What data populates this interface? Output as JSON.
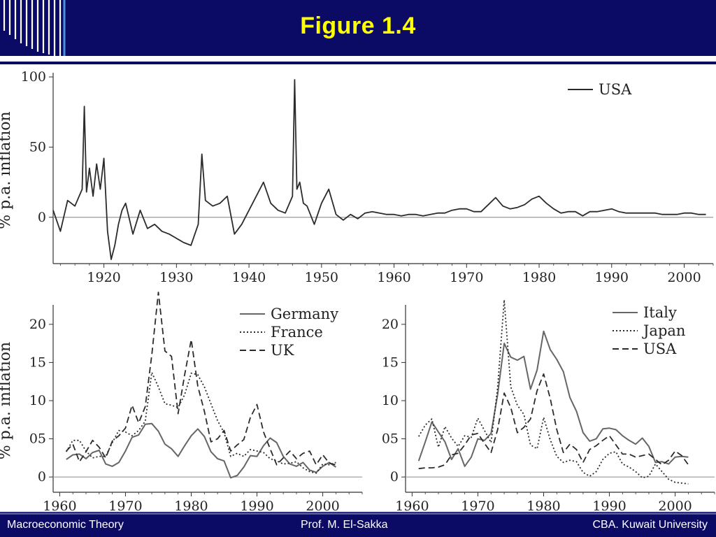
{
  "title": "Figure 1.4",
  "footer": {
    "left": "Macroeconomic Theory",
    "center": "Prof. M. El-Sakka",
    "right": "CBA. Kuwait University"
  },
  "colors": {
    "header": "#0b0b66",
    "title": "#ffff00",
    "line": "#2b2b2b",
    "gray": "#555555"
  },
  "chart_data": [
    {
      "type": "line",
      "ylabel": "% p.a. inflation",
      "xlim": [
        1913,
        2004
      ],
      "ylim": [
        -33,
        100
      ],
      "xticks": [
        1920,
        1930,
        1940,
        1950,
        1960,
        1970,
        1980,
        1990,
        2000
      ],
      "yticks": [
        0,
        50,
        100
      ],
      "legend_position": "top-right",
      "series": [
        {
          "name": "USA",
          "style": "solid",
          "x": [
            1913,
            1914,
            1915,
            1916,
            1917,
            1917.3,
            1917.6,
            1918,
            1918.5,
            1919,
            1919.5,
            1920,
            1920.5,
            1921,
            1921.5,
            1922,
            1922.5,
            1923,
            1924,
            1925,
            1926,
            1927,
            1928,
            1929,
            1930,
            1931,
            1932,
            1933,
            1933.5,
            1934,
            1935,
            1936,
            1937,
            1938,
            1939,
            1940,
            1941,
            1942,
            1943,
            1944,
            1945,
            1946,
            1946.3,
            1946.6,
            1947,
            1947.5,
            1948,
            1949,
            1950,
            1951,
            1952,
            1953,
            1954,
            1955,
            1956,
            1957,
            1958,
            1959,
            1960,
            1961,
            1962,
            1963,
            1964,
            1965,
            1966,
            1967,
            1968,
            1969,
            1970,
            1971,
            1972,
            1973,
            1974,
            1975,
            1976,
            1977,
            1978,
            1979,
            1980,
            1981,
            1982,
            1983,
            1984,
            1985,
            1986,
            1987,
            1988,
            1989,
            1990,
            1991,
            1992,
            1993,
            1994,
            1995,
            1996,
            1997,
            1998,
            1999,
            2000,
            2001,
            2002,
            2003
          ],
          "y": [
            5,
            -10,
            12,
            8,
            20,
            79,
            18,
            35,
            15,
            38,
            20,
            42,
            -10,
            -30,
            -20,
            -5,
            5,
            10,
            -12,
            5,
            -8,
            -5,
            -10,
            -12,
            -15,
            -18,
            -20,
            -5,
            45,
            12,
            8,
            10,
            15,
            -12,
            -5,
            5,
            15,
            25,
            10,
            5,
            3,
            15,
            98,
            20,
            25,
            10,
            8,
            -5,
            10,
            20,
            2,
            -2,
            2,
            -1,
            3,
            4,
            3,
            2,
            2,
            1,
            2,
            2,
            1,
            2,
            3,
            3,
            5,
            6,
            6,
            4,
            4,
            9,
            14,
            8,
            6,
            7,
            9,
            13,
            15,
            10,
            6,
            3,
            4,
            4,
            1,
            4,
            4,
            5,
            6,
            4,
            3,
            3,
            3,
            3,
            3,
            2,
            2,
            2,
            3,
            3,
            2,
            2
          ]
        }
      ]
    },
    {
      "type": "line",
      "ylabel": "% p.a. inflation",
      "xlim": [
        1959,
        2006
      ],
      "ylim": [
        -2,
        22
      ],
      "xticks": [
        1960,
        1970,
        1980,
        1990,
        2000
      ],
      "yticks": [
        0,
        5,
        10,
        15,
        20
      ],
      "ytick_labels": [
        "0",
        "05",
        "10",
        "15",
        "20"
      ],
      "legend_position": "top-right",
      "series": [
        {
          "name": "Germany",
          "style": "solid",
          "x": [
            1961,
            1962,
            1963,
            1964,
            1965,
            1966,
            1967,
            1968,
            1969,
            1970,
            1971,
            1972,
            1973,
            1974,
            1975,
            1976,
            1977,
            1978,
            1979,
            1980,
            1981,
            1982,
            1983,
            1984,
            1985,
            1986,
            1987,
            1988,
            1989,
            1990,
            1991,
            1992,
            1993,
            1994,
            1995,
            1996,
            1997,
            1998,
            1999,
            2000,
            2001,
            2002
          ],
          "y": [
            2.3,
            2.9,
            3.0,
            2.4,
            3.2,
            3.5,
            1.7,
            1.4,
            1.9,
            3.4,
            5.2,
            5.5,
            6.9,
            7.0,
            6.0,
            4.3,
            3.7,
            2.7,
            4.1,
            5.4,
            6.3,
            5.3,
            3.3,
            2.4,
            2.1,
            -0.1,
            0.2,
            1.3,
            2.8,
            2.7,
            4.1,
            5.1,
            4.5,
            2.7,
            1.7,
            1.4,
            1.9,
            0.9,
            0.6,
            1.4,
            1.9,
            1.3
          ]
        },
        {
          "name": "France",
          "style": "dotted",
          "x": [
            1961,
            1962,
            1963,
            1964,
            1965,
            1966,
            1967,
            1968,
            1969,
            1970,
            1971,
            1972,
            1973,
            1974,
            1975,
            1976,
            1977,
            1978,
            1979,
            1980,
            1981,
            1982,
            1983,
            1984,
            1985,
            1986,
            1987,
            1988,
            1989,
            1990,
            1991,
            1992,
            1993,
            1994,
            1995,
            1996,
            1997,
            1998,
            1999,
            2000,
            2001,
            2002
          ],
          "y": [
            3.3,
            4.8,
            4.8,
            3.4,
            2.5,
            2.7,
            2.7,
            4.5,
            6.1,
            5.9,
            5.4,
            6.1,
            7.3,
            13.7,
            11.8,
            9.6,
            9.4,
            9.1,
            10.8,
            13.6,
            13.4,
            11.8,
            9.6,
            7.4,
            5.8,
            2.7,
            3.1,
            2.7,
            3.6,
            3.4,
            3.2,
            2.4,
            2.1,
            1.7,
            1.8,
            2.0,
            1.2,
            0.7,
            0.5,
            1.7,
            1.6,
            1.9
          ]
        },
        {
          "name": "UK",
          "style": "dashed",
          "x": [
            1961,
            1962,
            1963,
            1964,
            1965,
            1966,
            1967,
            1968,
            1969,
            1970,
            1971,
            1972,
            1973,
            1974,
            1975,
            1976,
            1977,
            1978,
            1979,
            1980,
            1981,
            1982,
            1983,
            1984,
            1985,
            1986,
            1987,
            1988,
            1989,
            1990,
            1991,
            1992,
            1993,
            1994,
            1995,
            1996,
            1997,
            1998,
            1999,
            2000,
            2001,
            2002
          ],
          "y": [
            3.4,
            4.3,
            2.0,
            3.3,
            4.8,
            3.9,
            2.5,
            4.7,
            5.4,
            6.4,
            9.4,
            7.1,
            9.2,
            16.0,
            24.2,
            16.5,
            15.8,
            8.3,
            13.4,
            18.0,
            11.9,
            8.6,
            4.6,
            5.0,
            6.1,
            3.4,
            4.2,
            4.9,
            7.8,
            9.5,
            5.9,
            3.7,
            1.6,
            2.5,
            3.4,
            2.4,
            3.1,
            3.4,
            1.6,
            2.9,
            1.8,
            1.6
          ]
        }
      ]
    },
    {
      "type": "line",
      "ylabel": "",
      "xlim": [
        1959,
        2006
      ],
      "ylim": [
        -2,
        22
      ],
      "xticks": [
        1960,
        1970,
        1980,
        1990,
        2000
      ],
      "yticks": [
        0,
        5,
        10,
        15,
        20
      ],
      "ytick_labels": [
        "0",
        "05",
        "10",
        "15",
        "20"
      ],
      "legend_position": "top-right",
      "series": [
        {
          "name": "Italy",
          "style": "solid",
          "x": [
            1961,
            1962,
            1963,
            1964,
            1965,
            1966,
            1967,
            1968,
            1969,
            1970,
            1971,
            1972,
            1973,
            1974,
            1975,
            1976,
            1977,
            1978,
            1979,
            1980,
            1981,
            1982,
            1983,
            1984,
            1985,
            1986,
            1987,
            1988,
            1989,
            1990,
            1991,
            1992,
            1993,
            1994,
            1995,
            1996,
            1997,
            1998,
            1999,
            2000,
            2001,
            2002
          ],
          "y": [
            2.1,
            4.6,
            7.2,
            5.9,
            4.6,
            2.3,
            3.7,
            1.4,
            2.6,
            5.0,
            4.8,
            5.7,
            10.8,
            17.5,
            15.7,
            15.3,
            15.8,
            11.5,
            14.0,
            19.1,
            16.7,
            15.4,
            13.8,
            10.4,
            8.6,
            5.8,
            4.7,
            5.0,
            6.3,
            6.4,
            6.2,
            5.4,
            4.8,
            4.3,
            5.1,
            4.0,
            1.9,
            2.0,
            1.7,
            2.6,
            2.7,
            2.6
          ]
        },
        {
          "name": "Japan",
          "style": "dotted",
          "x": [
            1961,
            1962,
            1963,
            1964,
            1965,
            1966,
            1967,
            1968,
            1969,
            1970,
            1971,
            1972,
            1973,
            1974,
            1975,
            1976,
            1977,
            1978,
            1979,
            1980,
            1981,
            1982,
            1983,
            1984,
            1985,
            1986,
            1987,
            1988,
            1989,
            1990,
            1991,
            1992,
            1993,
            1994,
            1995,
            1996,
            1997,
            1998,
            1999,
            2000,
            2001,
            2002
          ],
          "y": [
            5.3,
            6.8,
            7.6,
            3.9,
            6.6,
            5.1,
            4.0,
            5.4,
            5.2,
            7.7,
            6.1,
            4.5,
            11.7,
            23.2,
            11.8,
            9.4,
            8.2,
            4.2,
            3.7,
            7.8,
            4.9,
            2.7,
            1.9,
            2.2,
            2.0,
            0.6,
            0.1,
            0.7,
            2.3,
            3.1,
            3.3,
            1.7,
            1.3,
            0.7,
            -0.1,
            0.1,
            1.7,
            0.7,
            -0.3,
            -0.7,
            -0.8,
            -0.9
          ]
        },
        {
          "name": "USA",
          "style": "dashed",
          "x": [
            1961,
            1962,
            1963,
            1964,
            1965,
            1966,
            1967,
            1968,
            1969,
            1970,
            1971,
            1972,
            1973,
            1974,
            1975,
            1976,
            1977,
            1978,
            1979,
            1980,
            1981,
            1982,
            1983,
            1984,
            1985,
            1986,
            1987,
            1988,
            1989,
            1990,
            1991,
            1992,
            1993,
            1994,
            1995,
            1996,
            1997,
            1998,
            1999,
            2000,
            2001,
            2002
          ],
          "y": [
            1.1,
            1.2,
            1.2,
            1.3,
            1.6,
            2.9,
            3.1,
            4.2,
            5.5,
            5.7,
            4.4,
            3.2,
            6.2,
            11.0,
            9.1,
            5.8,
            6.5,
            7.6,
            11.3,
            13.5,
            10.3,
            6.2,
            3.2,
            4.3,
            3.6,
            1.9,
            3.6,
            4.1,
            4.8,
            5.4,
            4.2,
            3.0,
            3.0,
            2.6,
            2.8,
            3.0,
            2.3,
            1.6,
            2.2,
            3.4,
            2.8,
            1.6
          ]
        }
      ]
    }
  ]
}
